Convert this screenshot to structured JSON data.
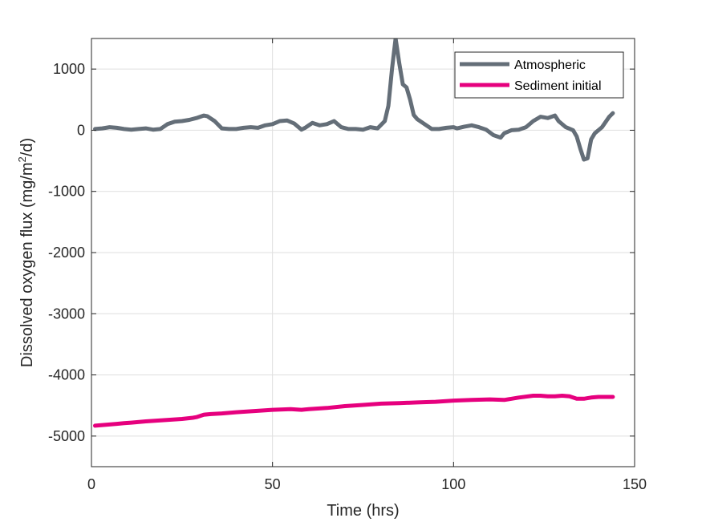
{
  "chart_data": {
    "type": "line",
    "xlabel": "Time (hrs)",
    "ylabel": {
      "prefix": "Dissolved oxygen flux (mg/m",
      "superscript": "2",
      "suffix": "/d)"
    },
    "xlim": [
      0,
      150
    ],
    "ylim": [
      -5500,
      1500
    ],
    "xticks": [
      0,
      50,
      100,
      150
    ],
    "yticks": [
      -5000,
      -4000,
      -3000,
      -2000,
      -1000,
      0,
      1000
    ],
    "grid": true,
    "legend_position": "top-right",
    "series": [
      {
        "name": "Atmospheric",
        "color": "#646e78",
        "x": [
          1,
          3,
          5,
          7,
          9,
          11,
          13,
          15,
          17,
          19,
          21,
          23,
          25,
          27,
          29,
          31,
          32,
          34,
          36,
          38,
          40,
          42,
          44,
          46,
          48,
          50,
          52,
          54,
          56,
          58,
          59,
          61,
          63,
          65,
          67,
          69,
          71,
          73,
          75,
          77,
          79,
          81,
          82,
          83,
          84,
          85,
          86,
          87,
          88,
          89,
          90,
          92,
          94,
          96,
          98,
          100,
          101,
          103,
          105,
          107,
          109,
          111,
          113,
          114,
          116,
          118,
          120,
          122,
          124,
          126,
          128,
          129,
          131,
          133,
          134,
          135,
          136,
          137,
          138,
          139,
          141,
          143,
          144
        ],
        "values": [
          20,
          30,
          50,
          40,
          20,
          10,
          20,
          30,
          10,
          20,
          100,
          140,
          150,
          170,
          200,
          240,
          230,
          150,
          30,
          20,
          20,
          40,
          50,
          40,
          80,
          100,
          150,
          160,
          110,
          10,
          40,
          120,
          80,
          100,
          150,
          50,
          20,
          20,
          10,
          50,
          30,
          150,
          400,
          1000,
          1500,
          1100,
          750,
          700,
          500,
          250,
          180,
          100,
          20,
          20,
          40,
          50,
          30,
          60,
          80,
          50,
          10,
          -80,
          -120,
          -50,
          0,
          10,
          50,
          150,
          220,
          200,
          240,
          150,
          50,
          0,
          -100,
          -300,
          -480,
          -460,
          -150,
          -50,
          50,
          220,
          280
        ]
      },
      {
        "name": "Sediment initial",
        "color": "#e6007e",
        "x": [
          1,
          3,
          5,
          7,
          9,
          11,
          15,
          20,
          25,
          28,
          29,
          31,
          33,
          36,
          40,
          45,
          50,
          55,
          58,
          60,
          65,
          70,
          75,
          80,
          85,
          90,
          95,
          100,
          105,
          110,
          114,
          118,
          122,
          124,
          126,
          128,
          130,
          132,
          134,
          136,
          138,
          140,
          142,
          144
        ],
        "values": [
          -4830,
          -4820,
          -4810,
          -4800,
          -4790,
          -4780,
          -4760,
          -4740,
          -4720,
          -4700,
          -4690,
          -4650,
          -4640,
          -4630,
          -4610,
          -4590,
          -4570,
          -4560,
          -4570,
          -4560,
          -4540,
          -4510,
          -4490,
          -4470,
          -4460,
          -4450,
          -4440,
          -4420,
          -4410,
          -4400,
          -4410,
          -4370,
          -4340,
          -4340,
          -4350,
          -4350,
          -4340,
          -4350,
          -4390,
          -4390,
          -4370,
          -4360,
          -4360,
          -4360
        ]
      }
    ]
  }
}
